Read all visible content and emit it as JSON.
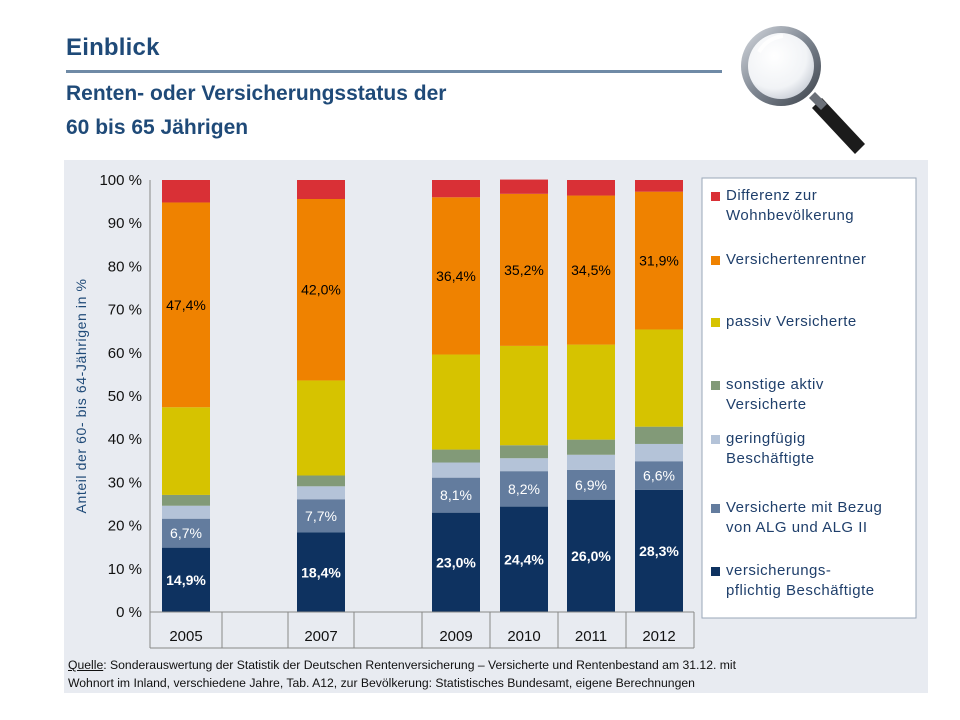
{
  "header": {
    "title": "Einblick",
    "subtitle_line1": "Renten- oder Versicherungsstatus der",
    "subtitle_line2": "60 bis 65 Jährigen"
  },
  "chart_data": {
    "type": "bar",
    "stacked": true,
    "categories": [
      "2005",
      "2007",
      "2009",
      "2010",
      "2011",
      "2012"
    ],
    "ylabel": "Anteil der 60- bis 64-Jährigen in %",
    "ylim": [
      0,
      100
    ],
    "yticks": [
      "0 %",
      "10 %",
      "20 %",
      "30 %",
      "40 %",
      "50 %",
      "60 %",
      "70 %",
      "80 %",
      "90 %",
      "100 %"
    ],
    "grid": false,
    "legend_position": "right",
    "series": [
      {
        "name": "versicherungs-pflichtig Beschäftigte",
        "legend_lines": [
          "versicherungs-",
          "pflichtig Beschäftigte"
        ],
        "color": "#0e3260",
        "label_color": "#ffffff",
        "values": [
          14.9,
          18.4,
          23.0,
          24.4,
          26.0,
          28.3
        ],
        "labels": [
          "14,9%",
          "18,4%",
          "23,0%",
          "24,4%",
          "26,0%",
          "28,3%"
        ]
      },
      {
        "name": "Versicherte mit Bezug von ALG und ALG II",
        "legend_lines": [
          "Versicherte mit Bezug",
          "von ALG  und ALG II"
        ],
        "color": "#637c9e",
        "label_color": "#ffffff",
        "values": [
          6.7,
          7.7,
          8.1,
          8.2,
          6.9,
          6.6
        ],
        "labels": [
          "6,7%",
          "7,7%",
          "8,1%",
          "8,2%",
          "6,9%",
          "6,6%"
        ]
      },
      {
        "name": "geringfügig Beschäftigte",
        "legend_lines": [
          "geringfügig",
          "Beschäftigte"
        ],
        "color": "#b4c3d8",
        "label_color": "#000000",
        "values": [
          3.0,
          3.0,
          3.5,
          3.0,
          3.5,
          4.0
        ],
        "labels": [
          "",
          "",
          "",
          "",
          "",
          ""
        ]
      },
      {
        "name": "sonstige aktiv Versicherte",
        "legend_lines": [
          "sonstige aktiv",
          "Versicherte"
        ],
        "color": "#829a78",
        "label_color": "#000000",
        "values": [
          2.5,
          2.5,
          3.0,
          3.0,
          3.5,
          4.0
        ],
        "labels": [
          "",
          "",
          "",
          "",
          "",
          ""
        ]
      },
      {
        "name": "passiv Versicherte",
        "legend_lines": [
          "passiv Versicherte"
        ],
        "color": "#d6c300",
        "label_color": "#000000",
        "values": [
          20.3,
          22.0,
          22.0,
          23.0,
          22.0,
          22.5
        ],
        "labels": [
          "",
          "",
          "",
          "",
          "",
          ""
        ]
      },
      {
        "name": "Versichertenrentner",
        "legend_lines": [
          "Versichertenrentner"
        ],
        "color": "#ef8200",
        "label_color": "#000000",
        "values": [
          47.4,
          42.0,
          36.4,
          35.2,
          34.5,
          31.9
        ],
        "labels": [
          "47,4%",
          "42,0%",
          "36,4%",
          "35,2%",
          "34,5%",
          "31,9%"
        ]
      },
      {
        "name": "Differenz zur Wohnbevölkerung",
        "legend_lines": [
          "Differenz zur",
          "Wohnbevölkerung"
        ],
        "color": "#d93036",
        "label_color": "#000000",
        "values": [
          5.2,
          4.4,
          4.0,
          3.3,
          3.6,
          2.7
        ],
        "labels": [
          "",
          "",
          "",
          "",
          "",
          ""
        ]
      }
    ]
  },
  "source": {
    "label": "Quelle",
    "text_line1": ": Sonderauswertung der Statistik der Deutschen Rentenversicherung – Versicherte und Rentenbestand am 31.12. mit",
    "text_line2": "Wohnort im Inland, verschiedene Jahre, Tab. A12, zur Bevölkerung: Statistisches Bundesamt, eigene Berechnungen"
  }
}
